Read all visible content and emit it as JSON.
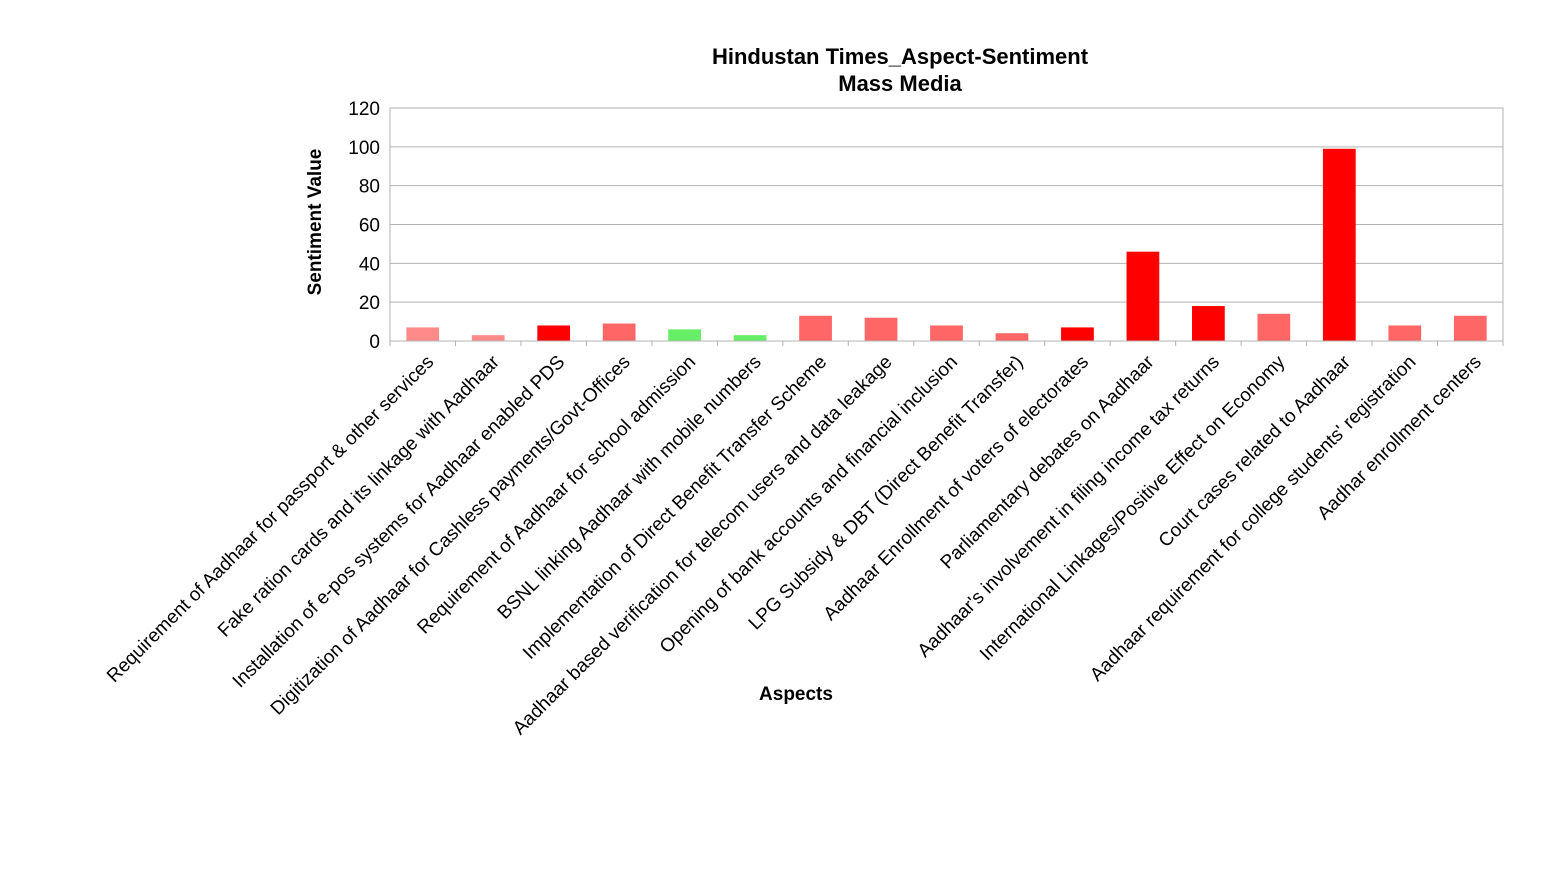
{
  "chart_data": {
    "type": "bar",
    "title": "Hindustan Times_Aspect-Sentiment",
    "subtitle": "Mass Media",
    "xlabel": "Aspects",
    "ylabel": "Sentiment Value",
    "ylim": [
      0,
      120
    ],
    "yticks": [
      "0",
      "20",
      "40",
      "60",
      "80",
      "100",
      "120"
    ],
    "grid": true,
    "legend": "none",
    "categories": [
      "Requirement of Aadhaar for passport & other services",
      "Fake ration cards and its linkage with Aadhaar",
      "Installation of e-pos systems for Aadhaar enabled PDS",
      "Digitization of Aadhaar for Cashless payments/Govt-Offices",
      "Requirement of Aadhaar for school admission",
      "BSNL linking Aadhaar with mobile numbers",
      "Implementation of Direct Benefit Transfer Scheme",
      "Aadhaar based verification for telecom users and data leakage",
      "Opening of bank accounts and financial inclusion",
      "LPG Subsidy & DBT (Direct Benefit Transfer)",
      "Aadhaar Enrollment of voters of electorates",
      "Parliamentary debates on Aadhaar",
      "Aadhaar's involvement in filing income tax returns",
      "International Linkages/Positive Effect on Economy",
      "Court cases related to Aadhaar",
      "Aadhaar requirement for college students' registration",
      "Aadhar enrollment centers"
    ],
    "values": [
      7,
      3,
      8,
      9,
      6,
      3,
      13,
      12,
      8,
      4,
      7,
      46,
      18,
      14,
      99,
      8,
      13
    ],
    "colors": [
      "#ff8a8a",
      "#ff8a8a",
      "#ff0000",
      "#ff6666",
      "#66ee66",
      "#66ee66",
      "#ff6666",
      "#ff6666",
      "#ff6666",
      "#ff6666",
      "#ff0000",
      "#ff0000",
      "#ff0000",
      "#ff6666",
      "#ff0000",
      "#ff6666",
      "#ff6666"
    ]
  }
}
